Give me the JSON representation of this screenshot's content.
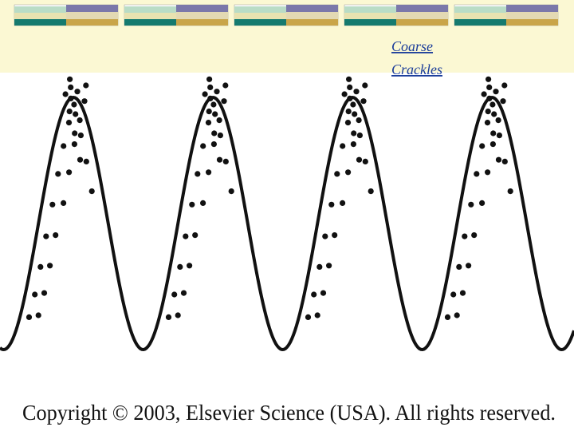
{
  "slide": {
    "title_lines": [
      "Coarse",
      "Crackles"
    ],
    "copyright": "Copyright © 2003, Elsevier Science (USA). All rights reserved."
  }
}
